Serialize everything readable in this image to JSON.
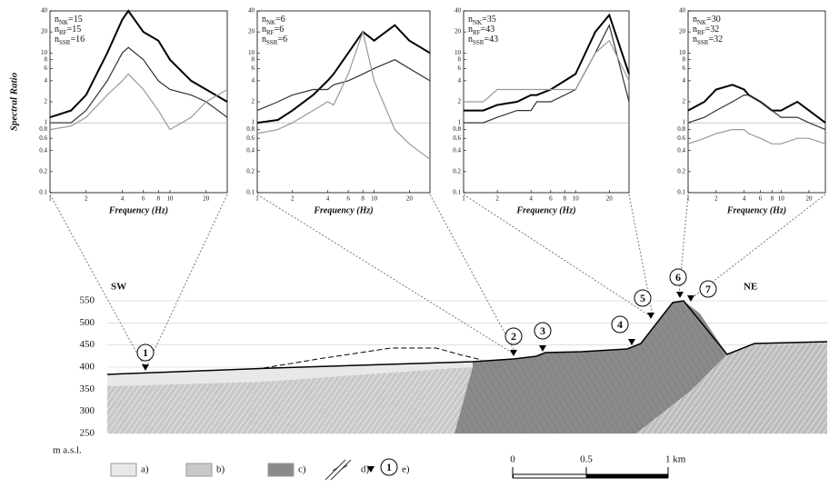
{
  "chart_data": [
    {
      "type": "line",
      "ylabel": "Spectral Ratio",
      "xlabel": "Frequency (Hz)",
      "annotations": [
        {
          "symbol": "n",
          "sub": "NK",
          "text": "=15"
        },
        {
          "symbol": "n",
          "sub": "RF",
          "text": "=15"
        },
        {
          "symbol": "n",
          "sub": "SSR",
          "text": "=16"
        }
      ],
      "x": [
        1,
        1.5,
        2,
        3,
        4,
        4.5,
        6,
        8,
        10,
        15,
        20,
        30
      ],
      "series": [
        {
          "color": "#000000",
          "values": [
            1.2,
            1.5,
            2.5,
            10,
            30,
            40,
            20,
            15,
            8,
            4,
            3,
            2
          ]
        },
        {
          "color": "#333333",
          "values": [
            1,
            1,
            1.5,
            4,
            10,
            12,
            8,
            4,
            3,
            2.5,
            2,
            1.2
          ]
        },
        {
          "color": "#999999",
          "values": [
            0.8,
            0.9,
            1.2,
            2.5,
            4,
            5,
            3,
            1.5,
            0.8,
            1.2,
            2,
            3
          ]
        }
      ],
      "xlim": [
        1,
        30
      ],
      "ylim": [
        0.1,
        40
      ],
      "log_x": true,
      "log_y": true,
      "xticks": [
        1,
        2,
        4,
        6,
        8,
        10,
        20
      ],
      "yticks": [
        0.1,
        0.2,
        0.4,
        0.6,
        0.8,
        1,
        2,
        4,
        6,
        8,
        10,
        20,
        40
      ]
    },
    {
      "type": "line",
      "xlabel": "Frequency (Hz)",
      "annotations": [
        {
          "symbol": "n",
          "sub": "NK",
          "text": "=6"
        },
        {
          "symbol": "n",
          "sub": "RF",
          "text": "=6"
        },
        {
          "symbol": "n",
          "sub": "SSR",
          "text": "=6"
        }
      ],
      "x": [
        1,
        1.5,
        2,
        3,
        4,
        4.5,
        6,
        8,
        10,
        15,
        20,
        30
      ],
      "series": [
        {
          "color": "#000000",
          "values": [
            1,
            1.1,
            1.5,
            2.5,
            4,
            5,
            10,
            20,
            15,
            25,
            15,
            10
          ]
        },
        {
          "color": "#333333",
          "values": [
            1.5,
            2,
            2.5,
            3,
            3,
            3.5,
            4,
            5,
            6,
            8,
            6,
            4
          ]
        },
        {
          "color": "#999999",
          "values": [
            0.7,
            0.8,
            1,
            1.5,
            2,
            1.8,
            5,
            20,
            4,
            0.8,
            0.5,
            0.3
          ]
        }
      ],
      "xlim": [
        1,
        30
      ],
      "ylim": [
        0.1,
        40
      ],
      "log_x": true,
      "log_y": true,
      "xticks": [
        1,
        2,
        4,
        6,
        8,
        10,
        20
      ],
      "yticks": [
        0.1,
        0.2,
        0.4,
        0.6,
        0.8,
        1,
        2,
        4,
        6,
        8,
        10,
        20,
        40
      ]
    },
    {
      "type": "line",
      "xlabel": "Frequency (Hz)",
      "annotations": [
        {
          "symbol": "n",
          "sub": "NK",
          "text": "=35"
        },
        {
          "symbol": "n",
          "sub": "RF",
          "text": "=43"
        },
        {
          "symbol": "n",
          "sub": "SSR",
          "text": "=43"
        }
      ],
      "x": [
        1,
        1.5,
        2,
        3,
        4,
        4.5,
        6,
        8,
        10,
        15,
        20,
        30
      ],
      "series": [
        {
          "color": "#000000",
          "values": [
            1.5,
            1.5,
            1.8,
            2,
            2.5,
            2.5,
            3,
            4,
            5,
            20,
            35,
            5
          ]
        },
        {
          "color": "#333333",
          "values": [
            1,
            1,
            1.2,
            1.5,
            1.5,
            2,
            2,
            2.5,
            3,
            10,
            25,
            2
          ]
        },
        {
          "color": "#999999",
          "values": [
            2,
            2,
            3,
            3,
            3,
            3,
            3,
            3,
            3,
            10,
            15,
            4
          ]
        }
      ],
      "xlim": [
        1,
        30
      ],
      "ylim": [
        0.1,
        40
      ],
      "log_x": true,
      "log_y": true,
      "xticks": [
        1,
        2,
        4,
        6,
        8,
        10,
        20
      ],
      "yticks": [
        0.1,
        0.2,
        0.4,
        0.6,
        0.8,
        1,
        2,
        4,
        6,
        8,
        10,
        20,
        40
      ]
    },
    {
      "type": "line",
      "xlabel": "Frequency (Hz)",
      "annotations": [
        {
          "symbol": "n",
          "sub": "NK",
          "text": "=30"
        },
        {
          "symbol": "n",
          "sub": "RF",
          "text": "=32"
        },
        {
          "symbol": "n",
          "sub": "SSR",
          "text": "=32"
        }
      ],
      "x": [
        1,
        1.5,
        2,
        3,
        4,
        4.5,
        6,
        8,
        10,
        15,
        20,
        30
      ],
      "series": [
        {
          "color": "#000000",
          "values": [
            1.5,
            2,
            3,
            3.5,
            3,
            2.5,
            2,
            1.5,
            1.5,
            2,
            1.5,
            1
          ]
        },
        {
          "color": "#333333",
          "values": [
            1,
            1.2,
            1.5,
            2,
            2.5,
            2.5,
            2,
            1.5,
            1.2,
            1.2,
            1,
            0.8
          ]
        },
        {
          "color": "#999999",
          "values": [
            0.5,
            0.6,
            0.7,
            0.8,
            0.8,
            0.7,
            0.6,
            0.5,
            0.5,
            0.6,
            0.6,
            0.5
          ]
        }
      ],
      "xlim": [
        1,
        30
      ],
      "ylim": [
        0.1,
        40
      ],
      "log_x": true,
      "log_y": true,
      "xticks": [
        1,
        2,
        4,
        6,
        8,
        10,
        20
      ],
      "yticks": [
        0.1,
        0.2,
        0.4,
        0.6,
        0.8,
        1,
        2,
        4,
        6,
        8,
        10,
        20,
        40
      ]
    }
  ],
  "section": {
    "ylim": [
      250,
      550
    ],
    "yticks": [
      250,
      300,
      350,
      400,
      450,
      500,
      550
    ],
    "ylabel": "m a.s.l.",
    "left_label": "SW",
    "right_label": "NE",
    "stations": [
      "1",
      "2",
      "3",
      "4",
      "5",
      "6",
      "7"
    ]
  },
  "legend": {
    "items": [
      "a)",
      "b)",
      "c)",
      "d)",
      "e)"
    ],
    "symbol": "1"
  },
  "scale": {
    "labels": [
      "0",
      "0.5",
      "1 km"
    ]
  }
}
